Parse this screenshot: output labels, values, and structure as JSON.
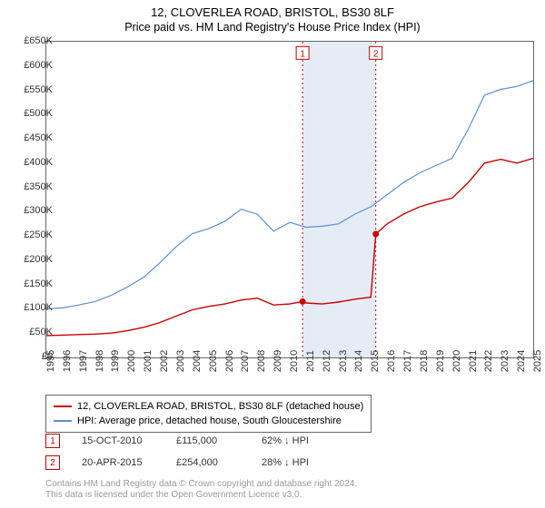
{
  "title_line1": "12, CLOVERLEA ROAD, BRISTOL, BS30 8LF",
  "title_line2": "Price paid vs. HM Land Registry's House Price Index (HPI)",
  "chart": {
    "type": "line",
    "x_range": [
      1995,
      2025
    ],
    "y_range": [
      0,
      650000
    ],
    "y_ticks": [
      0,
      50000,
      100000,
      150000,
      200000,
      250000,
      300000,
      350000,
      400000,
      450000,
      500000,
      550000,
      600000,
      650000
    ],
    "y_tick_labels": [
      "£0",
      "£50K",
      "£100K",
      "£150K",
      "£200K",
      "£250K",
      "£300K",
      "£350K",
      "£400K",
      "£450K",
      "£500K",
      "£550K",
      "£600K",
      "£650K"
    ],
    "x_ticks": [
      1995,
      1996,
      1997,
      1998,
      1999,
      2000,
      2001,
      2002,
      2003,
      2004,
      2005,
      2006,
      2007,
      2008,
      2009,
      2010,
      2011,
      2012,
      2013,
      2014,
      2015,
      2016,
      2017,
      2018,
      2019,
      2020,
      2021,
      2022,
      2023,
      2024,
      2025
    ],
    "plot_background": "#ffffff",
    "grid_color": "#666666",
    "band": {
      "x_start": 2010.79,
      "x_end": 2015.3,
      "fill": "#e6ecf5"
    },
    "vlines": [
      {
        "x": 2010.79,
        "color": "#cc0000",
        "dash": "2,3"
      },
      {
        "x": 2015.3,
        "color": "#cc0000",
        "dash": "2,3"
      }
    ],
    "series": [
      {
        "name": "property",
        "color": "#cc0000",
        "width": 1.4,
        "points": [
          [
            1995,
            45000
          ],
          [
            1996,
            46000
          ],
          [
            1997,
            47000
          ],
          [
            1998,
            48000
          ],
          [
            1999,
            50000
          ],
          [
            2000,
            55000
          ],
          [
            2001,
            62000
          ],
          [
            2002,
            72000
          ],
          [
            2003,
            85000
          ],
          [
            2004,
            98000
          ],
          [
            2005,
            105000
          ],
          [
            2006,
            110000
          ],
          [
            2007,
            118000
          ],
          [
            2008,
            122000
          ],
          [
            2009,
            108000
          ],
          [
            2010,
            110000
          ],
          [
            2010.79,
            115000
          ],
          [
            2011,
            112000
          ],
          [
            2012,
            110000
          ],
          [
            2013,
            114000
          ],
          [
            2014,
            120000
          ],
          [
            2015.0,
            124000
          ],
          [
            2015.3,
            254000
          ],
          [
            2016,
            275000
          ],
          [
            2017,
            295000
          ],
          [
            2018,
            310000
          ],
          [
            2019,
            320000
          ],
          [
            2020,
            328000
          ],
          [
            2021,
            360000
          ],
          [
            2022,
            400000
          ],
          [
            2023,
            408000
          ],
          [
            2024,
            400000
          ],
          [
            2025,
            410000
          ]
        ]
      },
      {
        "name": "hpi",
        "color": "#5b8fd6",
        "width": 1.2,
        "points": [
          [
            1995,
            100000
          ],
          [
            1996,
            102000
          ],
          [
            1997,
            108000
          ],
          [
            1998,
            115000
          ],
          [
            1999,
            128000
          ],
          [
            2000,
            145000
          ],
          [
            2001,
            165000
          ],
          [
            2002,
            195000
          ],
          [
            2003,
            228000
          ],
          [
            2004,
            255000
          ],
          [
            2005,
            265000
          ],
          [
            2006,
            280000
          ],
          [
            2007,
            305000
          ],
          [
            2008,
            295000
          ],
          [
            2009,
            260000
          ],
          [
            2010,
            278000
          ],
          [
            2011,
            268000
          ],
          [
            2012,
            270000
          ],
          [
            2013,
            275000
          ],
          [
            2014,
            295000
          ],
          [
            2015,
            310000
          ],
          [
            2016,
            335000
          ],
          [
            2017,
            360000
          ],
          [
            2018,
            380000
          ],
          [
            2019,
            395000
          ],
          [
            2020,
            410000
          ],
          [
            2021,
            470000
          ],
          [
            2022,
            540000
          ],
          [
            2023,
            552000
          ],
          [
            2024,
            558000
          ],
          [
            2025,
            570000
          ]
        ]
      }
    ],
    "markers": [
      {
        "label": "1",
        "x": 2010.79,
        "y": 115000,
        "top_y": 640000
      },
      {
        "label": "2",
        "x": 2015.3,
        "y": 254000,
        "top_y": 640000
      }
    ],
    "marker_box": {
      "size": 14,
      "border": "#cc0000",
      "text_color": "#cc0000",
      "font_size": 10
    }
  },
  "legend": {
    "border": "#666666",
    "items": [
      {
        "color": "#cc0000",
        "label": "12, CLOVERLEA ROAD, BRISTOL, BS30 8LF (detached house)"
      },
      {
        "color": "#5b8fd6",
        "label": "HPI: Average price, detached house, South Gloucestershire"
      }
    ]
  },
  "sales": [
    {
      "n": "1",
      "date": "15-OCT-2010",
      "price": "£115,000",
      "pct": "62% ↓ HPI"
    },
    {
      "n": "2",
      "date": "20-APR-2015",
      "price": "£254,000",
      "pct": "28% ↓ HPI"
    }
  ],
  "footer_line1": "Contains HM Land Registry data © Crown copyright and database right 2024.",
  "footer_line2": "This data is licensed under the Open Government Licence v3.0."
}
